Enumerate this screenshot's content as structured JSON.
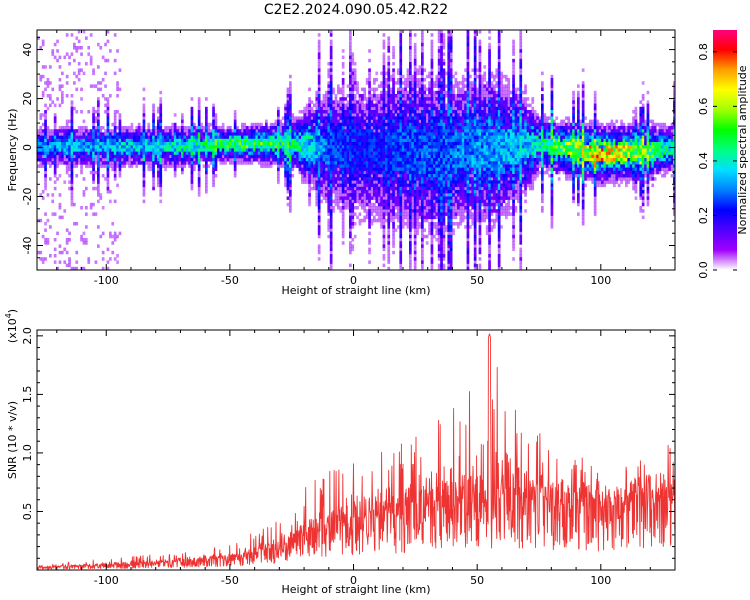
{
  "chart_data": [
    {
      "type": "heatmap",
      "title": "C2E2.2024.090.05.42.R22",
      "xlabel": "Height of straight line (km)",
      "ylabel": "Frequency (Hz)",
      "xlim": [
        -128,
        130
      ],
      "ylim": [
        -50,
        48
      ],
      "x_ticks": [
        -100,
        -50,
        0,
        50,
        100
      ],
      "y_ticks": [
        -40,
        -20,
        0,
        20,
        40
      ],
      "colorbar": {
        "label": "Normalized spectral amplitude",
        "range": [
          0,
          0.88
        ],
        "ticks": [
          0.0,
          0.2,
          0.4,
          0.6,
          0.8
        ],
        "colormap": [
          "#ffffff",
          "#a000ff",
          "#5000ff",
          "#0000ff",
          "#0080ff",
          "#00e0ff",
          "#00ff80",
          "#00ff00",
          "#a0ff00",
          "#ffff00",
          "#ffa000",
          "#ff0000",
          "#ff0080"
        ]
      },
      "band_profile": {
        "x": [
          -128,
          -100,
          -75,
          -50,
          -25,
          -10,
          0,
          10,
          20,
          30,
          35,
          45,
          55,
          65,
          75,
          100,
          115,
          130
        ],
        "center_hz": [
          1,
          1,
          1,
          2,
          2,
          0,
          0,
          -1,
          0,
          -2,
          -3,
          0,
          0,
          1,
          2,
          -2,
          -1,
          0
        ],
        "half_width_hz": [
          6,
          6,
          6,
          5,
          7,
          18,
          22,
          24,
          24,
          26,
          24,
          22,
          24,
          18,
          8,
          8,
          8,
          7
        ],
        "peak_amplitude": [
          0.35,
          0.4,
          0.45,
          0.6,
          0.55,
          0.3,
          0.25,
          0.25,
          0.3,
          0.3,
          0.3,
          0.35,
          0.35,
          0.4,
          0.5,
          0.85,
          0.7,
          0.45
        ]
      }
    },
    {
      "type": "line",
      "xlabel": "Height of straight line (km)",
      "ylabel": "SNR (10 * v/v)",
      "y_multiplier_label": "(x10^4)",
      "xlim": [
        -128,
        130
      ],
      "ylim": [
        0,
        2.05
      ],
      "x_ticks": [
        -100,
        -50,
        0,
        50,
        100
      ],
      "y_ticks": [
        0.5,
        1.0,
        1.5,
        2.0
      ],
      "series": [
        {
          "color": "#ee3333",
          "envelope_x": [
            -128,
            -100,
            -75,
            -50,
            -30,
            -20,
            -10,
            0,
            10,
            20,
            30,
            40,
            50,
            55,
            60,
            70,
            80,
            90,
            100,
            110,
            120,
            130
          ],
          "envelope_max": [
            0.04,
            0.1,
            0.14,
            0.22,
            0.45,
            0.7,
            0.85,
            0.95,
            1.0,
            1.1,
            1.25,
            1.5,
            1.6,
            2.02,
            1.6,
            1.25,
            1.1,
            1.0,
            0.85,
            0.95,
            1.15,
            1.05
          ],
          "envelope_mean": [
            0.02,
            0.04,
            0.06,
            0.1,
            0.18,
            0.28,
            0.35,
            0.42,
            0.45,
            0.48,
            0.52,
            0.55,
            0.58,
            0.6,
            0.58,
            0.55,
            0.55,
            0.55,
            0.52,
            0.55,
            0.6,
            0.6
          ]
        }
      ]
    }
  ]
}
